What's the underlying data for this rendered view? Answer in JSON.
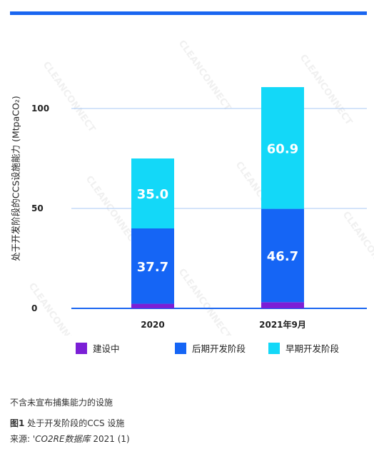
{
  "chart_data": {
    "type": "bar",
    "stacked": true,
    "categories": [
      "2020",
      "2021年9月"
    ],
    "series": [
      {
        "name": "建设中",
        "values": [
          2.3,
          3.1
        ],
        "color": "#7b1fd6"
      },
      {
        "name": "后期开发阶段",
        "values": [
          37.7,
          46.7
        ],
        "color": "#1565f5"
      },
      {
        "name": "早期开发阶段",
        "values": [
          35.0,
          60.9
        ],
        "color": "#13d8f8"
      }
    ],
    "ylabel": "处于开发阶段的CCS设施能力 (MtpaCO₂)",
    "ylim": [
      0,
      110
    ],
    "yticks": [
      0,
      50,
      100
    ],
    "grid": true,
    "legend_position": "bottom",
    "value_label_color": "#ffffff"
  },
  "notes": {
    "footnote": "不含未宣布捕集能力的设施",
    "figure_label": "图1",
    "figure_title": "处于开发阶段的CCS 设施",
    "source_prefix": "来源: '",
    "source_title": "CO2RE数据库",
    "source_suffix": " 2021 (1)"
  },
  "watermark": "CLEANCONNECT"
}
